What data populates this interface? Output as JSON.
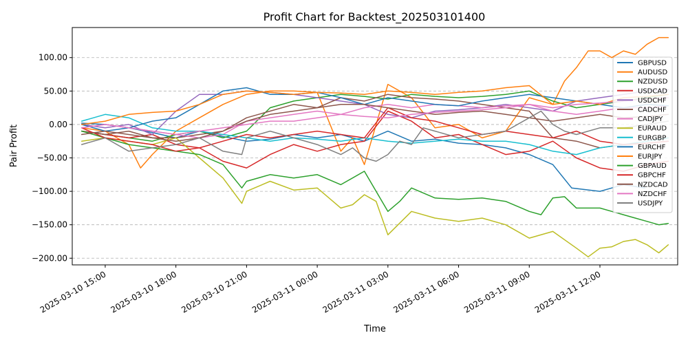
{
  "chart_data": {
    "type": "line",
    "title": "Profit Chart for Backtest_202503101400",
    "xlabel": "Time",
    "ylabel": "Pair Profit",
    "x_unit": "hours since 2025-03-10 14:00",
    "xlim": [
      -0.4,
      25.3
    ],
    "ylim": [
      -210,
      145
    ],
    "grid": true,
    "legend_position": "right",
    "yticks": [
      -200,
      -150,
      -100,
      -50,
      0,
      50,
      100
    ],
    "ytick_labels": [
      "−200.00",
      "−150.00",
      "−100.00",
      "−50.00",
      "0.00",
      "50.00",
      "100.00"
    ],
    "xticks": [
      1,
      4,
      7,
      10,
      13,
      16,
      19,
      22
    ],
    "xtick_labels": [
      "2025-03-10 15:00",
      "2025-03-10 18:00",
      "2025-03-10 21:00",
      "2025-03-11 00:00",
      "2025-03-11 03:00",
      "2025-03-11 06:00",
      "2025-03-11 09:00",
      "2025-03-11 12:00"
    ],
    "series": [
      {
        "name": "GBPUSD",
        "color": "#1f77b4",
        "x": [
          0,
          1,
          2,
          3,
          4,
          5,
          6,
          7,
          8,
          9,
          10,
          11,
          12,
          13,
          14,
          15,
          16,
          17,
          18,
          19,
          20,
          20.8,
          22,
          23,
          23.9
        ],
        "y": [
          2,
          0,
          -5,
          -12,
          -20,
          -10,
          -18,
          -25,
          -22,
          -15,
          -20,
          -15,
          -25,
          -10,
          -25,
          -22,
          -28,
          -30,
          -35,
          -45,
          -60,
          -95,
          -100,
          -90,
          -95
        ]
      },
      {
        "name": "AUDUSD",
        "color": "#ff7f0e",
        "x": [
          0,
          1,
          2,
          2.5,
          3,
          4,
          5,
          6,
          7,
          8,
          9,
          10,
          11,
          11.5,
          12,
          13,
          14,
          15,
          16,
          17,
          18,
          19,
          20,
          20.5,
          21,
          21.5,
          22,
          22.5,
          23,
          23.5,
          24,
          24.5,
          24.9
        ],
        "y": [
          -5,
          -10,
          -30,
          -65,
          -45,
          -10,
          10,
          30,
          45,
          50,
          50,
          48,
          -40,
          -20,
          -60,
          60,
          40,
          -5,
          0,
          -20,
          -10,
          40,
          30,
          65,
          85,
          110,
          110,
          100,
          110,
          105,
          120,
          130,
          130
        ]
      },
      {
        "name": "NZDUSD",
        "color": "#2ca02c",
        "x": [
          0,
          1,
          2,
          3,
          4,
          5,
          6,
          7,
          8,
          9,
          10,
          11,
          12,
          13,
          14,
          15,
          16,
          17,
          18,
          19,
          20,
          21,
          22,
          23,
          24,
          24.9
        ],
        "y": [
          -10,
          -15,
          -20,
          -25,
          -15,
          -10,
          -20,
          -10,
          25,
          35,
          40,
          45,
          42,
          38,
          45,
          42,
          40,
          42,
          45,
          50,
          35,
          25,
          30,
          35,
          40,
          45
        ]
      },
      {
        "name": "USDCAD",
        "color": "#d62728",
        "x": [
          0,
          1,
          2,
          3,
          4,
          5,
          6,
          7,
          8,
          9,
          10,
          11,
          12,
          13,
          14,
          15,
          16,
          17,
          18,
          19,
          20,
          21,
          22,
          23,
          24,
          24.9
        ],
        "y": [
          -10,
          -15,
          -20,
          -15,
          -30,
          -35,
          -55,
          -65,
          -45,
          -30,
          -40,
          -30,
          -25,
          20,
          5,
          -20,
          -15,
          -30,
          -45,
          -40,
          -25,
          -50,
          -65,
          -70,
          -60,
          -55
        ]
      },
      {
        "name": "USDCHF",
        "color": "#9467bd",
        "x": [
          0,
          1,
          2,
          3,
          4,
          5,
          6,
          7,
          8,
          9,
          10,
          11,
          12,
          13,
          14,
          15,
          16,
          17,
          18,
          19,
          20,
          21,
          22,
          23,
          24,
          24.9
        ],
        "y": [
          0,
          -5,
          0,
          -15,
          20,
          45,
          45,
          50,
          48,
          45,
          40,
          35,
          30,
          15,
          10,
          20,
          22,
          25,
          30,
          25,
          20,
          35,
          40,
          45,
          50,
          52
        ]
      },
      {
        "name": "CADCHF",
        "color": "#8c564b",
        "x": [
          0,
          1,
          2,
          3,
          4,
          5,
          6,
          7,
          8,
          9,
          10,
          11,
          12,
          13,
          14,
          15,
          16,
          17,
          18,
          19,
          20,
          21,
          22,
          23,
          24,
          24.9
        ],
        "y": [
          -10,
          -15,
          -10,
          -20,
          -20,
          -15,
          -10,
          10,
          20,
          30,
          25,
          40,
          35,
          45,
          40,
          38,
          35,
          30,
          25,
          20,
          -20,
          -25,
          -35,
          -30,
          -28,
          -25
        ]
      },
      {
        "name": "CADJPY",
        "color": "#e377c2",
        "x": [
          0,
          1,
          2,
          3,
          4,
          5,
          6,
          7,
          8,
          9,
          10,
          11,
          12,
          13,
          14,
          15,
          16,
          17,
          18,
          19,
          20,
          21,
          22,
          23,
          24,
          24.9
        ],
        "y": [
          -5,
          0,
          -5,
          -10,
          -15,
          -20,
          -15,
          5,
          10,
          15,
          20,
          15,
          25,
          30,
          25,
          30,
          28,
          25,
          28,
          30,
          20,
          15,
          20,
          25,
          25,
          28
        ]
      },
      {
        "name": "EURAUD",
        "color": "#bcbd22",
        "x": [
          0,
          1,
          2,
          3,
          4,
          5,
          6,
          6.8,
          7,
          8,
          9,
          10,
          11,
          11.5,
          12,
          12.5,
          13,
          14,
          15,
          16,
          17,
          18,
          19,
          20,
          21,
          21.5,
          22,
          22.5,
          23,
          23.5,
          24,
          24.5,
          24.9
        ],
        "y": [
          -25,
          -20,
          -25,
          -30,
          -20,
          -50,
          -80,
          -118,
          -100,
          -85,
          -98,
          -95,
          -125,
          -120,
          -105,
          -115,
          -165,
          -130,
          -140,
          -145,
          -140,
          -150,
          -170,
          -160,
          -185,
          -198,
          -185,
          -183,
          -175,
          -172,
          -180,
          -192,
          -180
        ]
      },
      {
        "name": "EURGBP",
        "color": "#17becf",
        "x": [
          0,
          1,
          2,
          3,
          4,
          5,
          6,
          7,
          8,
          9,
          10,
          11,
          12,
          13,
          14,
          15,
          16,
          17,
          18,
          19,
          20,
          21,
          22,
          23,
          24,
          24.9
        ],
        "y": [
          5,
          15,
          10,
          -5,
          -10,
          -10,
          -15,
          -20,
          -25,
          -20,
          -22,
          -25,
          -20,
          -25,
          -28,
          -25,
          -22,
          -25,
          -25,
          -30,
          -40,
          -45,
          -35,
          -30,
          -25,
          -20
        ]
      },
      {
        "name": "EURCHF",
        "color": "#1f77b4",
        "x": [
          0,
          1,
          2,
          3,
          4,
          5,
          6,
          7,
          8,
          9,
          10,
          11,
          12,
          13,
          14,
          15,
          16,
          17,
          18,
          19,
          20,
          21,
          22,
          23,
          24,
          24.9
        ],
        "y": [
          0,
          -10,
          -5,
          5,
          10,
          30,
          50,
          55,
          45,
          45,
          48,
          40,
          30,
          40,
          35,
          30,
          28,
          35,
          40,
          45,
          40,
          35,
          30,
          25,
          30,
          28
        ]
      },
      {
        "name": "EURJPY",
        "color": "#ff7f0e",
        "x": [
          0,
          1,
          2,
          3,
          4,
          5,
          6,
          7,
          8,
          9,
          10,
          11,
          12,
          13,
          14,
          15,
          16,
          17,
          18,
          19,
          20,
          21,
          22,
          23,
          24,
          24.9
        ],
        "y": [
          0,
          5,
          15,
          18,
          20,
          30,
          45,
          50,
          48,
          45,
          48,
          47,
          45,
          50,
          48,
          45,
          48,
          50,
          55,
          58,
          30,
          35,
          30,
          40,
          42,
          45
        ]
      },
      {
        "name": "GBPAUD",
        "color": "#2ca02c",
        "x": [
          0,
          1,
          2,
          3,
          4,
          5,
          6,
          6.8,
          7,
          8,
          9,
          10,
          11,
          12,
          12.5,
          13,
          13.5,
          14,
          15,
          16,
          17,
          18,
          19,
          19.5,
          20,
          20.5,
          21,
          22,
          23,
          23.5,
          24,
          24.5,
          24.9
        ],
        "y": [
          -10,
          -20,
          -30,
          -35,
          -40,
          -45,
          -60,
          -95,
          -85,
          -75,
          -80,
          -75,
          -90,
          -70,
          -100,
          -130,
          -115,
          -95,
          -110,
          -112,
          -110,
          -115,
          -130,
          -135,
          -110,
          -108,
          -125,
          -125,
          -135,
          -140,
          -145,
          -150,
          -148
        ]
      },
      {
        "name": "GBPCHF",
        "color": "#d62728",
        "x": [
          0,
          1,
          2,
          3,
          4,
          5,
          6,
          7,
          8,
          9,
          10,
          11,
          12,
          13,
          14,
          15,
          16,
          17,
          18,
          19,
          20,
          21,
          22,
          23,
          24,
          24.9
        ],
        "y": [
          -5,
          -20,
          -25,
          -30,
          -40,
          -35,
          -25,
          -15,
          -20,
          -15,
          -10,
          -15,
          -20,
          25,
          10,
          5,
          -5,
          -15,
          -10,
          -15,
          -20,
          -10,
          -25,
          -30,
          -28,
          -25
        ]
      },
      {
        "name": "NZDCAD",
        "color": "#8c564b",
        "x": [
          0,
          1,
          2,
          3,
          4,
          5,
          6,
          7,
          8,
          9,
          10,
          11,
          12,
          13,
          14,
          15,
          16,
          17,
          18,
          19,
          20,
          21,
          22,
          23,
          24,
          24.9
        ],
        "y": [
          -15,
          -10,
          -15,
          -20,
          -25,
          -20,
          -10,
          5,
          15,
          20,
          25,
          30,
          30,
          25,
          20,
          15,
          18,
          20,
          15,
          10,
          5,
          10,
          15,
          10,
          12,
          15
        ]
      },
      {
        "name": "NZDCHF",
        "color": "#e377c2",
        "x": [
          0,
          1,
          2,
          3,
          4,
          5,
          6,
          7,
          8,
          9,
          10,
          11,
          12,
          13,
          14,
          15,
          16,
          17,
          18,
          19,
          20,
          21,
          22,
          23,
          24,
          24.9
        ],
        "y": [
          -5,
          0,
          -5,
          -10,
          -15,
          -10,
          -5,
          0,
          5,
          5,
          10,
          15,
          12,
          10,
          15,
          18,
          20,
          22,
          25,
          30,
          25,
          30,
          32,
          35,
          38,
          40
        ]
      },
      {
        "name": "USDJPY",
        "color": "#7f7f7f",
        "x": [
          0,
          1,
          2,
          3,
          4,
          5,
          6,
          6.8,
          7,
          8,
          9,
          10,
          11,
          11.5,
          12,
          12.5,
          13,
          13.5,
          14,
          14.5,
          15,
          16,
          17,
          18,
          19,
          19.5,
          20,
          20.5,
          21,
          22,
          23,
          24,
          24.9
        ],
        "y": [
          -30,
          -20,
          -40,
          -35,
          -30,
          -20,
          -40,
          -45,
          -20,
          -10,
          -20,
          -30,
          -45,
          -35,
          -50,
          -55,
          -45,
          -25,
          -30,
          -5,
          -10,
          -20,
          -15,
          -10,
          10,
          20,
          0,
          -10,
          -15,
          -5,
          -5,
          0,
          5
        ]
      }
    ]
  }
}
